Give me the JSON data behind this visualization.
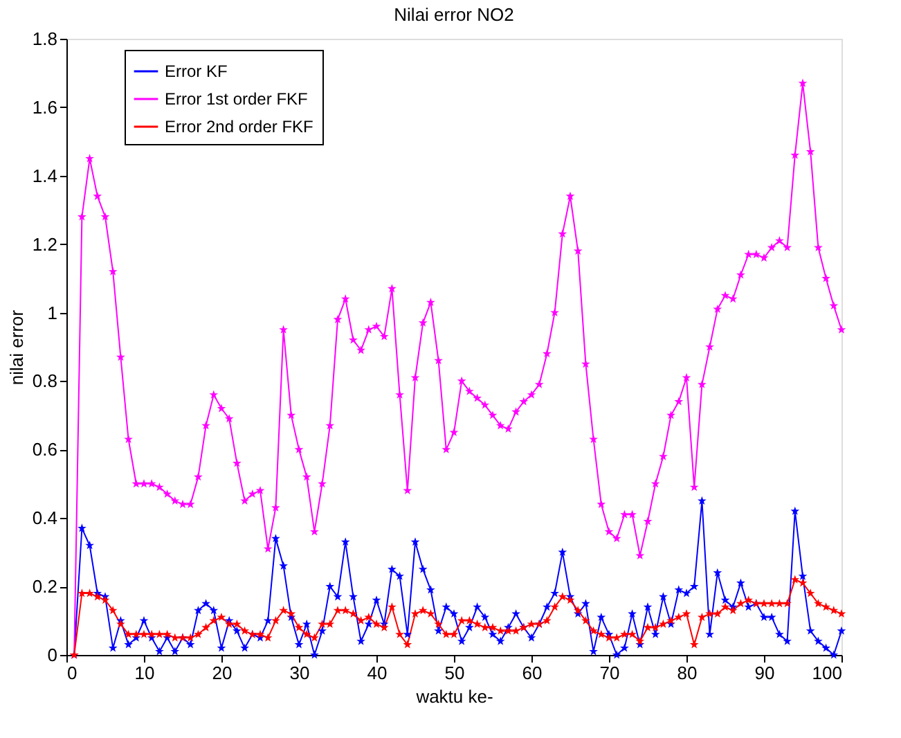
{
  "chart_data": {
    "type": "line",
    "title": "Nilai error NO2",
    "xlabel": "waktu ke-",
    "ylabel": "nilai error",
    "x": [
      1,
      2,
      3,
      4,
      5,
      6,
      7,
      8,
      9,
      10,
      11,
      12,
      13,
      14,
      15,
      16,
      17,
      18,
      19,
      20,
      21,
      22,
      23,
      24,
      25,
      26,
      27,
      28,
      29,
      30,
      31,
      32,
      33,
      34,
      35,
      36,
      37,
      38,
      39,
      40,
      41,
      42,
      43,
      44,
      45,
      46,
      47,
      48,
      49,
      50,
      51,
      52,
      53,
      54,
      55,
      56,
      57,
      58,
      59,
      60,
      61,
      62,
      63,
      64,
      65,
      66,
      67,
      68,
      69,
      70,
      71,
      72,
      73,
      74,
      75,
      76,
      77,
      78,
      79,
      80,
      81,
      82,
      83,
      84,
      85,
      86,
      87,
      88,
      89,
      90,
      91,
      92,
      93,
      94,
      95,
      96,
      97,
      98,
      99,
      100
    ],
    "series": [
      {
        "name": "Error KF",
        "color": "#0000ff",
        "values": [
          0,
          0.37,
          0.32,
          0.18,
          0.17,
          0.02,
          0.1,
          0.03,
          0.05,
          0.1,
          0.05,
          0.01,
          0.05,
          0.01,
          0.05,
          0.03,
          0.13,
          0.15,
          0.13,
          0.02,
          0.1,
          0.07,
          0.02,
          0.06,
          0.05,
          0.1,
          0.34,
          0.26,
          0.11,
          0.03,
          0.09,
          0.0,
          0.07,
          0.2,
          0.17,
          0.33,
          0.17,
          0.04,
          0.09,
          0.16,
          0.09,
          0.25,
          0.23,
          0.06,
          0.33,
          0.25,
          0.19,
          0.07,
          0.14,
          0.12,
          0.04,
          0.08,
          0.14,
          0.11,
          0.06,
          0.04,
          0.08,
          0.12,
          0.08,
          0.05,
          0.09,
          0.14,
          0.18,
          0.3,
          0.17,
          0.12,
          0.15,
          0.01,
          0.11,
          0.06,
          0.0,
          0.02,
          0.12,
          0.03,
          0.14,
          0.06,
          0.17,
          0.09,
          0.19,
          0.18,
          0.2,
          0.45,
          0.06,
          0.24,
          0.16,
          0.14,
          0.21,
          0.14,
          0.15,
          0.11,
          0.11,
          0.06,
          0.04,
          0.42,
          0.23,
          0.07,
          0.04,
          0.02,
          0.0,
          0.07
        ]
      },
      {
        "name": "Error 1st order FKF",
        "color": "#ff00ff",
        "values": [
          0,
          1.28,
          1.45,
          1.34,
          1.28,
          1.12,
          0.87,
          0.63,
          0.5,
          0.5,
          0.5,
          0.49,
          0.47,
          0.45,
          0.44,
          0.44,
          0.52,
          0.67,
          0.76,
          0.72,
          0.69,
          0.56,
          0.45,
          0.47,
          0.48,
          0.31,
          0.43,
          0.95,
          0.7,
          0.6,
          0.52,
          0.36,
          0.5,
          0.67,
          0.98,
          1.04,
          0.92,
          0.89,
          0.95,
          0.96,
          0.93,
          1.07,
          0.76,
          0.48,
          0.81,
          0.97,
          1.03,
          0.86,
          0.6,
          0.65,
          0.8,
          0.77,
          0.75,
          0.73,
          0.7,
          0.67,
          0.66,
          0.71,
          0.74,
          0.76,
          0.79,
          0.88,
          1.0,
          1.23,
          1.34,
          1.18,
          0.85,
          0.63,
          0.44,
          0.36,
          0.34,
          0.41,
          0.41,
          0.29,
          0.39,
          0.5,
          0.58,
          0.7,
          0.74,
          0.81,
          0.49,
          0.79,
          0.9,
          1.01,
          1.05,
          1.04,
          1.11,
          1.17,
          1.17,
          1.16,
          1.19,
          1.21,
          1.19,
          1.46,
          1.67,
          1.47,
          1.19,
          1.1,
          1.02,
          0.95
        ]
      },
      {
        "name": "Error 2nd order FKF",
        "color": "#ff0000",
        "values": [
          0,
          0.18,
          0.18,
          0.17,
          0.16,
          0.13,
          0.09,
          0.06,
          0.06,
          0.06,
          0.06,
          0.06,
          0.06,
          0.05,
          0.05,
          0.05,
          0.06,
          0.08,
          0.1,
          0.11,
          0.09,
          0.09,
          0.07,
          0.06,
          0.06,
          0.05,
          0.1,
          0.13,
          0.12,
          0.08,
          0.06,
          0.05,
          0.09,
          0.09,
          0.13,
          0.13,
          0.12,
          0.1,
          0.11,
          0.09,
          0.08,
          0.14,
          0.06,
          0.03,
          0.12,
          0.13,
          0.12,
          0.09,
          0.06,
          0.06,
          0.1,
          0.1,
          0.09,
          0.08,
          0.08,
          0.07,
          0.07,
          0.07,
          0.08,
          0.09,
          0.09,
          0.1,
          0.14,
          0.17,
          0.16,
          0.13,
          0.1,
          0.07,
          0.06,
          0.05,
          0.05,
          0.06,
          0.06,
          0.04,
          0.08,
          0.08,
          0.09,
          0.1,
          0.11,
          0.12,
          0.03,
          0.11,
          0.12,
          0.12,
          0.14,
          0.13,
          0.15,
          0.16,
          0.15,
          0.15,
          0.15,
          0.15,
          0.15,
          0.22,
          0.21,
          0.18,
          0.15,
          0.14,
          0.13,
          0.12
        ]
      }
    ],
    "xlim": [
      0,
      100
    ],
    "xticks": [
      0,
      10,
      20,
      30,
      40,
      50,
      60,
      70,
      80,
      90,
      100
    ],
    "ylim": [
      0,
      1.8
    ],
    "yticks": [
      {
        "value": 0,
        "label": "0"
      },
      0.2,
      0.4,
      0.6,
      0.8,
      {
        "value": 1,
        "label": "1"
      },
      1.2,
      1.4,
      1.6,
      1.8
    ],
    "grid": false,
    "legend": "top left",
    "marker": "star",
    "line_style": "solid"
  }
}
